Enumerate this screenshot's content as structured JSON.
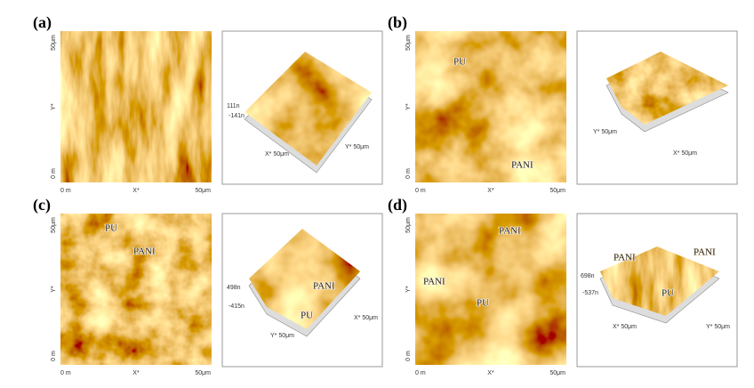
{
  "panels": [
    {
      "label": "(a)",
      "image2d": {
        "y_axis": [
          "50μm",
          "Y*",
          "0 m"
        ],
        "x_axis": [
          "0 m",
          "X*",
          "50μm"
        ],
        "annotations": []
      },
      "image3d": {
        "labels": [
          "111n",
          "-141n",
          "X* 50μm",
          "Y* 50μm"
        ]
      }
    },
    {
      "label": "(b)",
      "image2d": {
        "y_axis": [
          "50μm",
          "Y*",
          "0 m"
        ],
        "x_axis": [
          "0 m",
          "X*",
          "50μm"
        ],
        "annotations": [
          "PU",
          "PANI"
        ]
      },
      "image3d": {
        "labels": [
          "Y* 50μm",
          "X* 50μm"
        ]
      }
    },
    {
      "label": "(c)",
      "image2d": {
        "y_axis": [
          "50μm",
          "Y*",
          "0 m"
        ],
        "x_axis": [
          "0 m",
          "X*",
          "50μm"
        ],
        "annotations": [
          "PU",
          "PANI"
        ]
      },
      "image3d": {
        "labels": [
          "498n",
          "-415n",
          "PANI",
          "PU",
          "X* 50μm",
          "Y* 50μm"
        ]
      }
    },
    {
      "label": "(d)",
      "image2d": {
        "y_axis": [
          "50μm",
          "Y*",
          "0 m"
        ],
        "x_axis": [
          "0 m",
          "X*",
          "50μm"
        ],
        "annotations": [
          "PANI",
          "PANI",
          "PU"
        ]
      },
      "image3d": {
        "labels": [
          "698n",
          "-537n",
          "PANI",
          "PANI",
          "PU",
          "X* 50μm",
          "Y* 50μm"
        ]
      }
    }
  ]
}
